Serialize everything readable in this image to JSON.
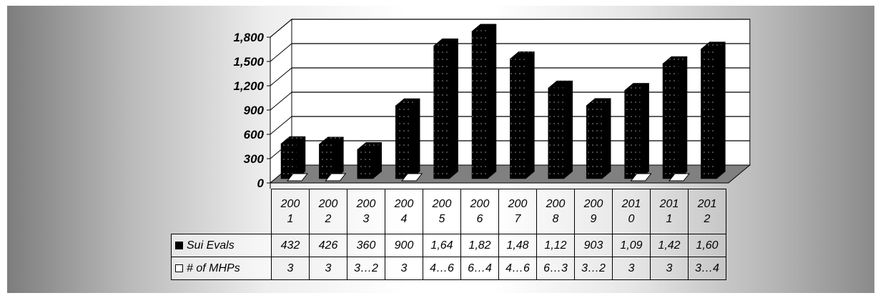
{
  "chart_data": {
    "type": "bar",
    "categories": [
      "2001",
      "2002",
      "2003",
      "2004",
      "2005",
      "2006",
      "2007",
      "2008",
      "2009",
      "2010",
      "2011",
      "2012"
    ],
    "category_labels": [
      [
        "200",
        "1"
      ],
      [
        "200",
        "2"
      ],
      [
        "200",
        "3"
      ],
      [
        "200",
        "4"
      ],
      [
        "200",
        "5"
      ],
      [
        "200",
        "6"
      ],
      [
        "200",
        "7"
      ],
      [
        "200",
        "8"
      ],
      [
        "200",
        "9"
      ],
      [
        "201",
        "0"
      ],
      [
        "201",
        "1"
      ],
      [
        "201",
        "2"
      ]
    ],
    "series": [
      {
        "name": "Sui Evals",
        "values": [
          432,
          426,
          360,
          900,
          1640,
          1820,
          1480,
          1120,
          903,
          1090,
          1420,
          1600
        ],
        "table_labels": [
          "432",
          "426",
          "360",
          "900",
          "1,64",
          "1,82",
          "1,48",
          "1,12",
          "903",
          "1,09",
          "1,42",
          "1,60"
        ]
      },
      {
        "name": "# of MHPs",
        "values": [
          3,
          3,
          null,
          3,
          null,
          null,
          null,
          null,
          null,
          3,
          3,
          null
        ],
        "table_labels": [
          "3",
          "3",
          "3…2",
          "3",
          "4…6",
          "6…4",
          "4…6",
          "6…3",
          "3…2",
          "3",
          "3",
          "3…4"
        ]
      }
    ],
    "y_ticks": [
      "0",
      "300",
      "600",
      "900",
      "1,200",
      "1,500",
      "1,800"
    ],
    "ylim": [
      0,
      1800
    ],
    "grid": true,
    "legend": "data-table",
    "colors": {
      "series1": "#000000",
      "series2": "#ffffff",
      "floor": "#808080",
      "wall": "#ffffff"
    }
  }
}
